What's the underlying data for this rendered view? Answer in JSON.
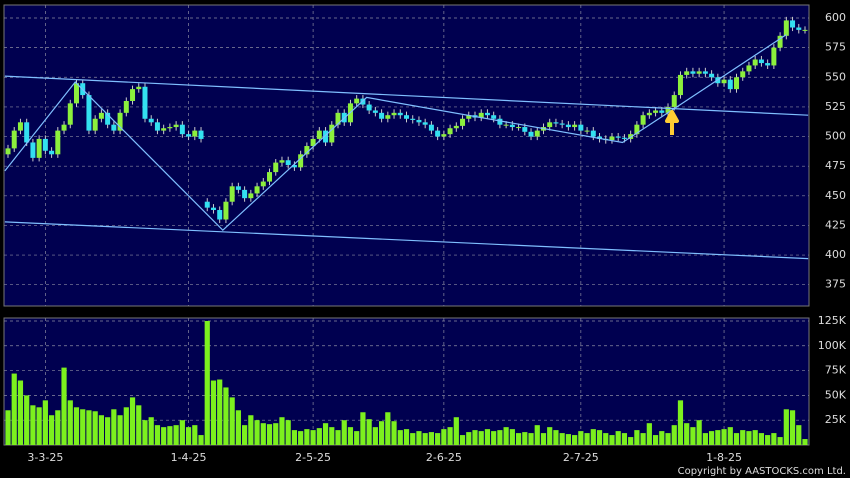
{
  "chart_data": {
    "type": "candlestick",
    "categories": [
      null,
      null,
      null,
      null,
      null,
      null,
      "3-3-25",
      null,
      null,
      null,
      null,
      null,
      null,
      null,
      null,
      null,
      null,
      null,
      null,
      null,
      null,
      null,
      null,
      null,
      null,
      null,
      null,
      null,
      null,
      "1-4-25",
      null,
      null,
      null,
      null,
      null,
      null,
      null,
      null,
      null,
      null,
      null,
      null,
      null,
      null,
      null,
      null,
      null,
      null,
      null,
      "2-5-25",
      null,
      null,
      null,
      null,
      null,
      null,
      null,
      null,
      null,
      null,
      null,
      null,
      null,
      null,
      null,
      null,
      null,
      null,
      null,
      null,
      "2-6-25",
      null,
      null,
      null,
      null,
      null,
      null,
      null,
      null,
      null,
      null,
      null,
      null,
      null,
      null,
      null,
      null,
      null,
      null,
      null,
      null,
      null,
      "2-7-25",
      null,
      null,
      null,
      null,
      null,
      null,
      null,
      null,
      null,
      null,
      null,
      null,
      null,
      null,
      null,
      null,
      null,
      null,
      null,
      null,
      null,
      null,
      "1-8-25",
      null,
      null,
      null,
      null,
      null,
      null,
      null,
      null,
      null,
      null,
      null,
      null,
      null
    ],
    "open": [
      485,
      490,
      505,
      512,
      495,
      482,
      498,
      488,
      485,
      505,
      510,
      528,
      545,
      535,
      505,
      515,
      520,
      510,
      505,
      520,
      530,
      540,
      542,
      515,
      512,
      505,
      507,
      508,
      510,
      502,
      500,
      505,
      445,
      440,
      438,
      430,
      445,
      458,
      455,
      448,
      452,
      458,
      462,
      470,
      478,
      480,
      476,
      474,
      485,
      492,
      498,
      505,
      495,
      510,
      520,
      512,
      528,
      532,
      527,
      522,
      520,
      515,
      518,
      520,
      518,
      515,
      514,
      512,
      510,
      505,
      500,
      502,
      507,
      509,
      515,
      518,
      516,
      520,
      518,
      515,
      510,
      510,
      508,
      508,
      504,
      500,
      505,
      508,
      512,
      511,
      510,
      508,
      510,
      505,
      505,
      500,
      498,
      497,
      500,
      499,
      498,
      502,
      510,
      518,
      520,
      522,
      520,
      525,
      535,
      552,
      555,
      553,
      555,
      553,
      550,
      545,
      548,
      540,
      550,
      555,
      560,
      565,
      562,
      560,
      575,
      585,
      598,
      592,
      590
    ],
    "high": [
      493,
      508,
      515,
      515,
      498,
      501,
      501,
      491,
      508,
      513,
      531,
      548,
      548,
      538,
      518,
      523,
      523,
      513,
      523,
      533,
      543,
      545,
      545,
      518,
      515,
      510,
      511,
      513,
      513,
      505,
      508,
      508,
      448,
      443,
      441,
      448,
      461,
      461,
      458,
      455,
      461,
      465,
      473,
      481,
      483,
      483,
      479,
      488,
      495,
      501,
      508,
      508,
      513,
      523,
      523,
      531,
      535,
      535,
      530,
      525,
      523,
      521,
      523,
      523,
      521,
      518,
      517,
      515,
      513,
      508,
      505,
      510,
      512,
      518,
      521,
      521,
      523,
      523,
      521,
      518,
      513,
      513,
      511,
      511,
      507,
      508,
      511,
      515,
      515,
      514,
      513,
      513,
      513,
      508,
      508,
      503,
      501,
      503,
      503,
      502,
      505,
      513,
      521,
      523,
      525,
      525,
      528,
      538,
      555,
      558,
      558,
      558,
      558,
      556,
      553,
      551,
      551,
      553,
      558,
      563,
      568,
      568,
      565,
      578,
      588,
      601,
      601,
      595,
      593
    ],
    "low": [
      482,
      487,
      502,
      492,
      479,
      479,
      485,
      482,
      482,
      502,
      507,
      525,
      532,
      502,
      502,
      512,
      507,
      502,
      502,
      517,
      527,
      537,
      512,
      509,
      502,
      502,
      504,
      505,
      499,
      497,
      497,
      495,
      437,
      435,
      427,
      427,
      442,
      452,
      445,
      445,
      449,
      455,
      459,
      467,
      475,
      473,
      471,
      471,
      482,
      489,
      495,
      492,
      492,
      507,
      509,
      509,
      525,
      524,
      519,
      517,
      512,
      512,
      515,
      515,
      512,
      511,
      509,
      507,
      502,
      497,
      497,
      499,
      504,
      506,
      512,
      513,
      513,
      515,
      512,
      507,
      507,
      505,
      505,
      501,
      497,
      497,
      502,
      505,
      508,
      507,
      505,
      505,
      502,
      502,
      497,
      495,
      494,
      494,
      496,
      495,
      495,
      499,
      507,
      515,
      517,
      517,
      517,
      522,
      532,
      549,
      550,
      550,
      550,
      547,
      542,
      542,
      537,
      537,
      547,
      552,
      557,
      559,
      557,
      557,
      572,
      582,
      589,
      587,
      587
    ],
    "close": [
      490,
      505,
      512,
      495,
      482,
      498,
      488,
      485,
      505,
      510,
      528,
      545,
      535,
      505,
      515,
      520,
      510,
      505,
      520,
      530,
      540,
      542,
      515,
      512,
      505,
      507,
      508,
      510,
      502,
      500,
      505,
      498,
      440,
      438,
      430,
      445,
      458,
      455,
      448,
      452,
      458,
      462,
      470,
      478,
      480,
      476,
      474,
      485,
      492,
      498,
      505,
      495,
      510,
      520,
      512,
      528,
      532,
      527,
      522,
      520,
      515,
      518,
      520,
      518,
      515,
      514,
      512,
      510,
      505,
      500,
      502,
      507,
      509,
      515,
      518,
      516,
      520,
      518,
      515,
      510,
      510,
      508,
      508,
      504,
      500,
      505,
      508,
      512,
      511,
      510,
      508,
      510,
      505,
      505,
      500,
      498,
      497,
      500,
      499,
      498,
      502,
      510,
      518,
      520,
      522,
      520,
      525,
      535,
      552,
      555,
      553,
      555,
      553,
      550,
      545,
      548,
      540,
      550,
      555,
      560,
      565,
      562,
      560,
      575,
      585,
      598,
      592,
      590,
      590
    ],
    "volume": [
      35000,
      72000,
      65000,
      50000,
      40000,
      38000,
      45000,
      30000,
      35000,
      78000,
      45000,
      38000,
      36000,
      35000,
      34000,
      30000,
      28000,
      36000,
      30000,
      38000,
      48000,
      40000,
      25000,
      28000,
      20000,
      18000,
      19000,
      20000,
      25000,
      18000,
      20000,
      10000,
      125000,
      65000,
      66000,
      58000,
      48000,
      35000,
      20000,
      30000,
      25000,
      22000,
      21000,
      22000,
      28000,
      25000,
      15000,
      14000,
      16000,
      15000,
      17000,
      22000,
      18000,
      15000,
      25000,
      18000,
      14000,
      33000,
      26000,
      18000,
      24000,
      33000,
      24000,
      15000,
      16000,
      12000,
      14000,
      12000,
      13000,
      12000,
      16000,
      18000,
      28000,
      10000,
      13000,
      15000,
      14000,
      16000,
      14000,
      15000,
      18000,
      16000,
      12000,
      13000,
      12000,
      20000,
      12000,
      18000,
      15000,
      12000,
      11000,
      10000,
      14000,
      12000,
      16000,
      15000,
      12000,
      10000,
      14000,
      12000,
      8000,
      15000,
      12000,
      22000,
      10000,
      14000,
      12000,
      20000,
      45000,
      22000,
      18000,
      25000,
      12000,
      14000,
      15000,
      16000,
      18000,
      12000,
      15000,
      14000,
      15000,
      12000,
      10000,
      12000,
      8000,
      36000,
      35000,
      20000,
      6000
    ],
    "ylim": [
      357,
      611
    ],
    "yticks": [
      375,
      400,
      425,
      450,
      475,
      500,
      525,
      550,
      575,
      600
    ],
    "volume_ylim": [
      0,
      128000
    ],
    "volume_yticks": [
      {
        "value": 25000,
        "label": "25K"
      },
      {
        "value": 50000,
        "label": "50K"
      },
      {
        "value": 75000,
        "label": "75K"
      },
      {
        "value": 100000,
        "label": "100K"
      },
      {
        "value": 125000,
        "label": "125K"
      }
    ],
    "up_color": "#8cf03c",
    "down_color": "#33e0f0",
    "volume_color": "#7cf01e",
    "line_color": "#7fbfff",
    "trend_lines": [
      {
        "x": [
          -0.5,
          128.5
        ],
        "y": [
          551,
          518
        ]
      },
      {
        "x": [
          -0.5,
          128.5
        ],
        "y": [
          428,
          397
        ]
      },
      {
        "x": [
          -0.5,
          10.8,
          34.5,
          57.6,
          98.7,
          108,
          125
        ],
        "y": [
          471,
          546,
          421,
          533,
          495,
          527,
          586
        ]
      }
    ],
    "copyright": "Copyright by AASTOCKS.com Ltd."
  }
}
